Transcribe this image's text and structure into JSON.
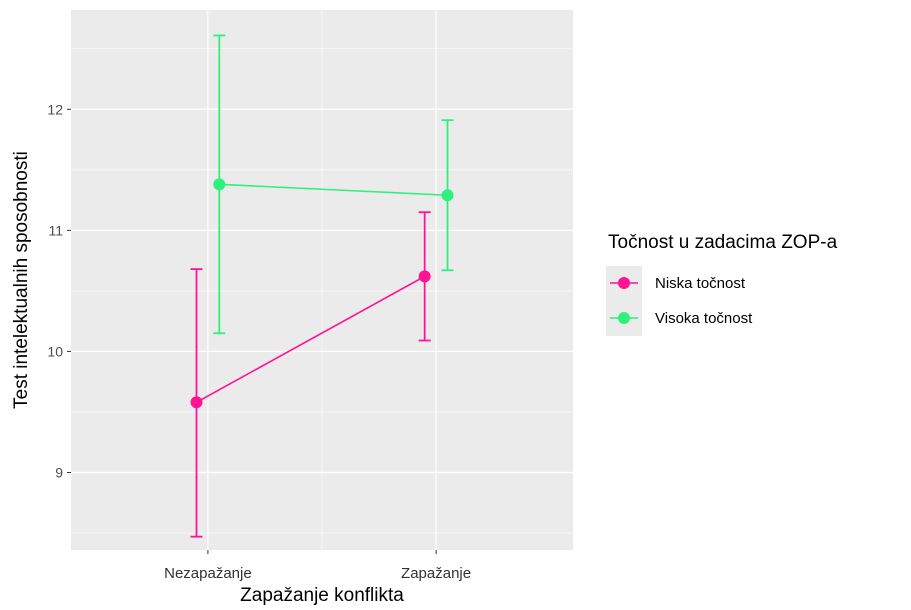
{
  "chart_data": {
    "type": "line",
    "xlabel": "Zapažanje konflikta",
    "ylabel": "Test intelektualnih sposobnosti",
    "categories": [
      "Nezapažanje",
      "Zapažanje"
    ],
    "ylim": [
      8.36,
      12.82
    ],
    "yticks": [
      9,
      10,
      11,
      12
    ],
    "grid": true,
    "legend": {
      "title": "Točnost u zadacima ZOP-a",
      "placement": "right"
    },
    "series": [
      {
        "name": "Niska točnost",
        "color": "#ff1493",
        "values": [
          9.58,
          10.62
        ],
        "error_low": [
          8.47,
          10.09
        ],
        "error_high": [
          10.68,
          11.15
        ]
      },
      {
        "name": "Visoka točnost",
        "color": "#2ef07c",
        "values": [
          11.38,
          11.29
        ],
        "error_low": [
          10.15,
          10.67
        ],
        "error_high": [
          12.61,
          11.91
        ]
      }
    ]
  }
}
